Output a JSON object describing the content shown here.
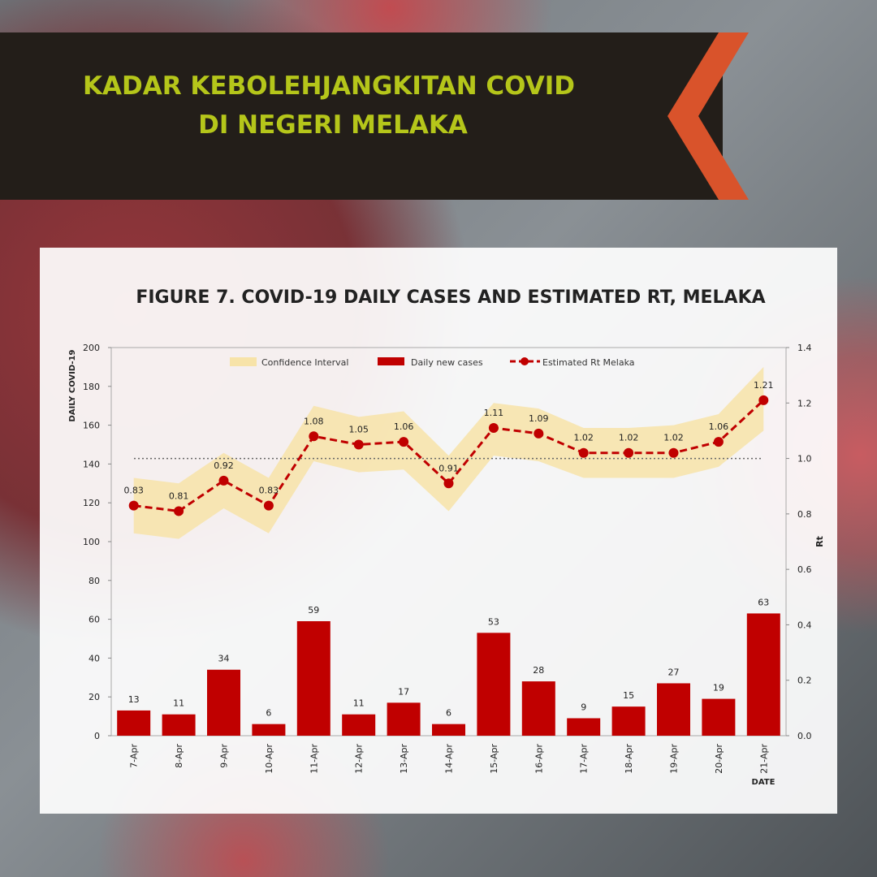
{
  "header": {
    "lines": [
      "KADAR KEBOLEHJANGKITAN COVID",
      "DI NEGERI MELAKA"
    ]
  },
  "chart_data": {
    "type": "bar-line",
    "title": "FIGURE 7. COVID-19 DAILY CASES AND ESTIMATED RT, MELAKA",
    "y_label": "DAILY COVID-19",
    "y2_label": "Rt",
    "x_label": "DATE",
    "categories": [
      "7-Apr",
      "8-Apr",
      "9-Apr",
      "10-Apr",
      "11-Apr",
      "12-Apr",
      "13-Apr",
      "14-Apr",
      "15-Apr",
      "16-Apr",
      "17-Apr",
      "18-Apr",
      "19-Apr",
      "20-Apr",
      "21-Apr"
    ],
    "series": [
      {
        "name": "Daily new cases",
        "color": "#c00000",
        "kind": "bar",
        "values": [
          13,
          11,
          34,
          6,
          59,
          11,
          17,
          6,
          53,
          28,
          9,
          15,
          27,
          19,
          63
        ]
      },
      {
        "name": "Estimated Rt Melaka",
        "color": "#c00000",
        "kind": "line",
        "axis": "y2",
        "values": [
          0.83,
          0.81,
          0.92,
          0.83,
          1.08,
          1.05,
          1.06,
          0.91,
          1.11,
          1.09,
          1.02,
          1.02,
          1.02,
          1.06,
          1.21
        ]
      }
    ],
    "confidence_interval": {
      "name": "Confidence Interval",
      "color": "#f7e3a8",
      "axis": "y2",
      "lower": [
        0.73,
        0.71,
        0.82,
        0.73,
        0.99,
        0.95,
        0.96,
        0.81,
        1.01,
        0.99,
        0.93,
        0.93,
        0.93,
        0.97,
        1.1
      ],
      "upper": [
        0.93,
        0.91,
        1.02,
        0.93,
        1.19,
        1.15,
        1.17,
        1.01,
        1.2,
        1.18,
        1.11,
        1.11,
        1.12,
        1.16,
        1.33
      ]
    },
    "reference_line": {
      "value": 1,
      "axis": "y2"
    },
    "ylim": [
      0,
      200
    ],
    "yticks": [
      0,
      20,
      40,
      60,
      80,
      100,
      120,
      140,
      160,
      180,
      200
    ],
    "y2lim": [
      0,
      1.4
    ],
    "y2ticks": [
      {
        "value": 0,
        "label": "0.0"
      },
      0.2,
      0.4,
      0.6,
      0.8,
      {
        "value": 1,
        "label": "1.0"
      },
      1.2,
      1.4
    ]
  }
}
